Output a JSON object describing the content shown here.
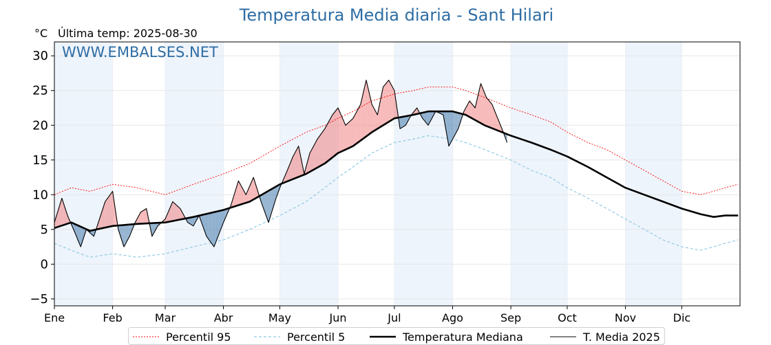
{
  "header": {
    "title": "Temperatura Media diaria - Sant Hilari",
    "unit": "°C",
    "last_temp": "Última temp: 2025-08-30",
    "watermark": "WWW.EMBALSES.NET"
  },
  "legend": {
    "p95": "Percentil 95",
    "p5": "Percentil 5",
    "median": "Temperatura Mediana",
    "current": "T. Media 2025"
  },
  "colors": {
    "title": "#2e6da4",
    "p95": "#ff0000",
    "p5": "#8ecae6",
    "median": "#000000",
    "current": "#000000",
    "above_fill": "#f08080",
    "below_fill": "#4f81b0",
    "month_band": "#eef4fb"
  },
  "chart_data": {
    "type": "line",
    "title": "Temperatura Media diaria - Sant Hilari",
    "ylabel": "°C",
    "ylim": [
      -6,
      32
    ],
    "yticks": [
      -5,
      0,
      5,
      10,
      15,
      20,
      25,
      30
    ],
    "ytick_labels": [
      "−5",
      "0",
      "5",
      "10",
      "15",
      "20",
      "25",
      "30"
    ],
    "months": [
      "Ene",
      "Feb",
      "Mar",
      "Abr",
      "May",
      "Jun",
      "Jul",
      "Ago",
      "Sep",
      "Oct",
      "Nov",
      "Dic"
    ],
    "month_start_days": [
      1,
      32,
      60,
      91,
      121,
      152,
      182,
      213,
      244,
      274,
      305,
      335
    ],
    "legend_position": "bottom-outside",
    "grid": true,
    "series": [
      {
        "name": "Temperatura Mediana",
        "x": [
          1,
          10,
          20,
          32,
          45,
          60,
          75,
          91,
          105,
          121,
          135,
          145,
          152,
          160,
          170,
          182,
          192,
          200,
          213,
          220,
          230,
          244,
          255,
          265,
          274,
          285,
          295,
          305,
          315,
          325,
          335,
          345,
          352,
          358,
          365
        ],
        "y": [
          5.2,
          6.0,
          4.8,
          5.5,
          5.8,
          6.0,
          6.8,
          7.8,
          9.0,
          11.5,
          13.0,
          14.5,
          16.0,
          17.0,
          19.0,
          21.0,
          21.5,
          22.0,
          22.0,
          21.5,
          20.0,
          18.5,
          17.5,
          16.5,
          15.5,
          14.0,
          12.5,
          11.0,
          10.0,
          9.0,
          8.0,
          7.2,
          6.8,
          7.0,
          7.0
        ]
      },
      {
        "name": "Percentil 95",
        "x": [
          1,
          10,
          20,
          32,
          45,
          60,
          75,
          91,
          105,
          121,
          135,
          145,
          152,
          160,
          170,
          182,
          192,
          200,
          213,
          220,
          230,
          244,
          255,
          265,
          274,
          285,
          295,
          305,
          315,
          325,
          335,
          345,
          352,
          358,
          365
        ],
        "y": [
          10.0,
          11.0,
          10.5,
          11.5,
          11.0,
          10.0,
          11.5,
          13.0,
          14.5,
          17.0,
          19.0,
          20.0,
          21.0,
          22.0,
          23.5,
          24.5,
          25.0,
          25.5,
          25.5,
          25.0,
          24.0,
          22.5,
          21.5,
          20.5,
          19.0,
          17.5,
          16.5,
          15.0,
          13.5,
          12.0,
          10.5,
          10.0,
          10.5,
          11.0,
          11.5
        ]
      },
      {
        "name": "Percentil 5",
        "x": [
          1,
          10,
          20,
          32,
          45,
          60,
          75,
          91,
          105,
          121,
          135,
          145,
          152,
          160,
          170,
          182,
          192,
          200,
          213,
          220,
          230,
          244,
          255,
          265,
          274,
          285,
          295,
          305,
          315,
          325,
          335,
          345,
          352,
          358,
          365
        ],
        "y": [
          3.0,
          2.0,
          1.0,
          1.5,
          1.0,
          1.5,
          2.5,
          3.5,
          5.0,
          7.0,
          9.0,
          11.0,
          12.5,
          14.0,
          16.0,
          17.5,
          18.0,
          18.5,
          18.0,
          17.5,
          16.5,
          15.0,
          13.5,
          12.5,
          11.0,
          9.5,
          8.0,
          6.5,
          5.0,
          3.5,
          2.5,
          2.0,
          2.5,
          3.0,
          3.5
        ]
      },
      {
        "name": "T. Media 2025",
        "x": [
          1,
          5,
          8,
          12,
          15,
          18,
          22,
          25,
          28,
          32,
          35,
          38,
          41,
          44,
          47,
          50,
          53,
          56,
          60,
          64,
          68,
          72,
          75,
          78,
          82,
          86,
          91,
          95,
          99,
          103,
          107,
          111,
          115,
          119,
          121,
          125,
          128,
          131,
          134,
          137,
          141,
          145,
          149,
          152,
          156,
          160,
          164,
          167,
          170,
          173,
          176,
          179,
          182,
          185,
          188,
          191,
          194,
          197,
          200,
          204,
          208,
          211,
          213,
          216,
          219,
          222,
          225,
          228,
          231,
          234,
          237,
          240,
          242
        ],
        "y": [
          6.0,
          9.5,
          7.0,
          4.5,
          2.5,
          5.0,
          4.0,
          6.5,
          9.0,
          10.5,
          5.0,
          2.5,
          4.0,
          6.0,
          7.5,
          8.0,
          4.0,
          5.5,
          6.5,
          9.0,
          8.0,
          6.0,
          5.5,
          7.0,
          4.0,
          2.5,
          6.0,
          8.5,
          12.0,
          10.0,
          12.5,
          9.0,
          6.0,
          9.5,
          11.0,
          13.5,
          15.5,
          17.0,
          13.0,
          16.0,
          18.0,
          19.5,
          21.5,
          22.5,
          20.0,
          21.0,
          23.0,
          26.5,
          23.0,
          21.5,
          25.5,
          26.5,
          25.0,
          19.5,
          20.0,
          21.5,
          22.5,
          21.0,
          20.0,
          22.0,
          21.5,
          17.0,
          18.0,
          19.5,
          22.0,
          23.5,
          22.5,
          26.0,
          24.0,
          23.0,
          21.0,
          19.0,
          17.5
        ]
      }
    ]
  }
}
